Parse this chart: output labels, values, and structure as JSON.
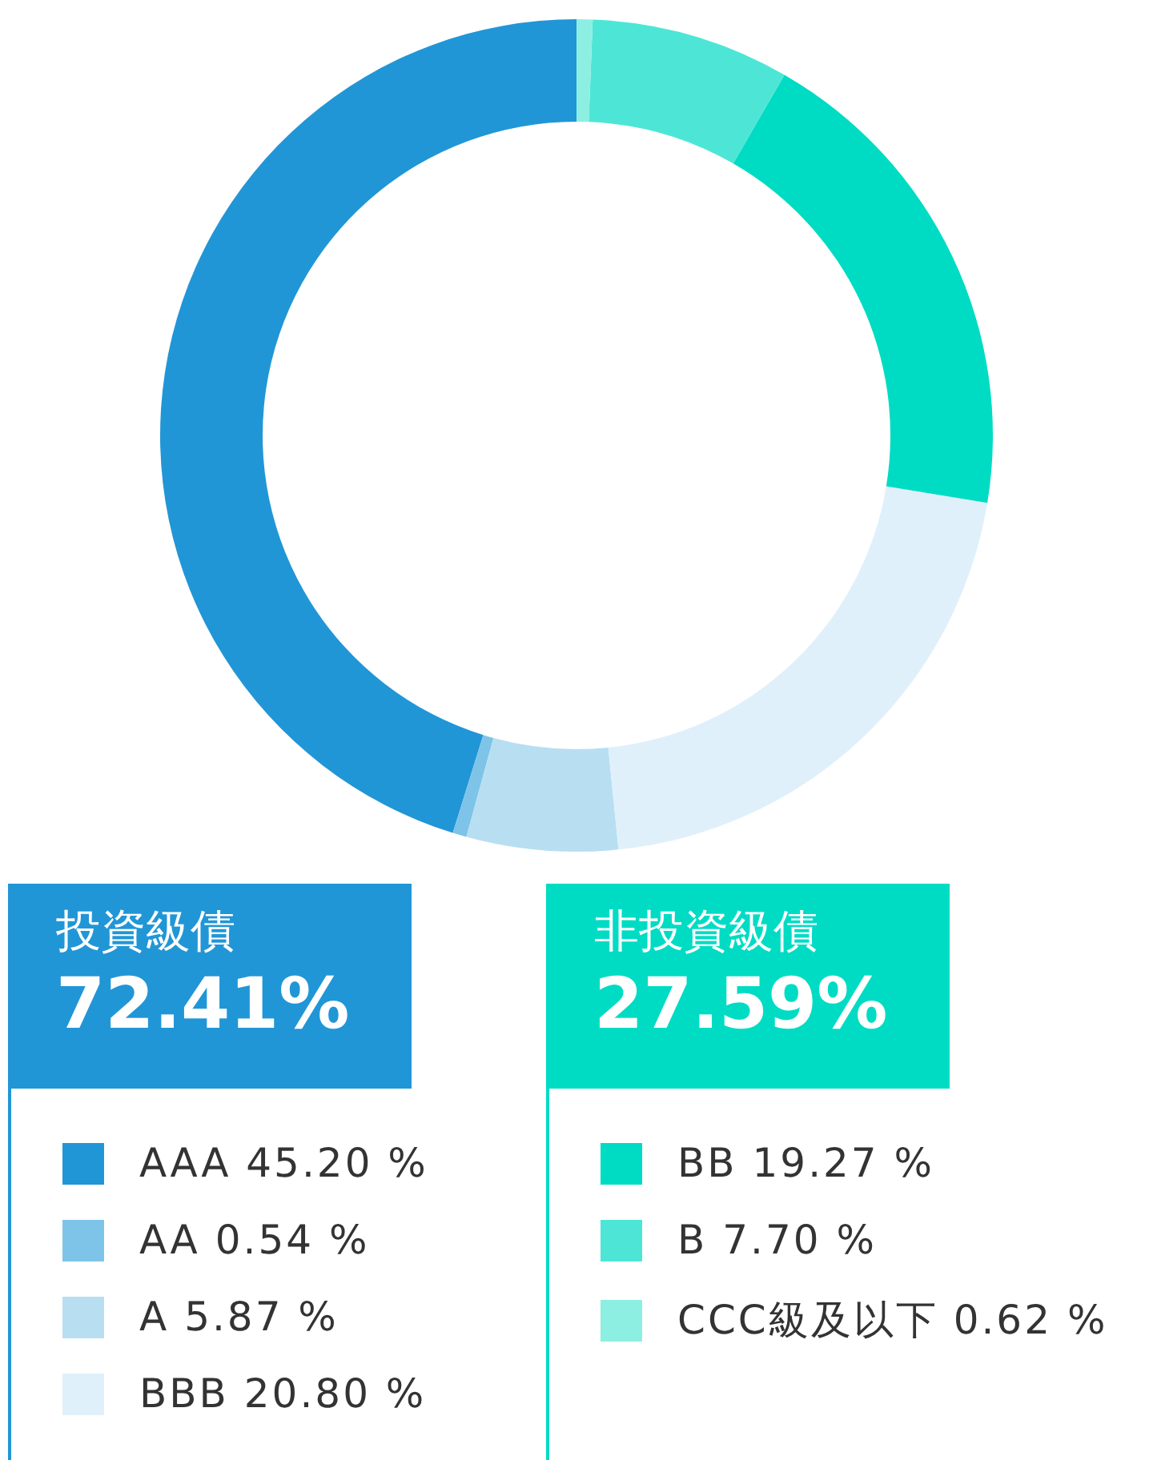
{
  "chart_data": {
    "type": "donut",
    "categories": [
      "AAA",
      "AA",
      "A",
      "BBB",
      "BB",
      "B",
      "CCC級及以下"
    ],
    "values": [
      45.2,
      0.54,
      5.87,
      20.8,
      19.27,
      7.7,
      0.62
    ],
    "value_labels": [
      "45.20 %",
      "0.54 %",
      "5.87 %",
      "20.80 %",
      "19.27 %",
      "7.70 %",
      "0.62 %"
    ],
    "colors": [
      "#2196d6",
      "#7ec4e8",
      "#b8def2",
      "#e0f0fa",
      "#00dcc4",
      "#4de6d6",
      "#8cefe2"
    ],
    "annotations": [
      "投資級債",
      "72.41%",
      "非投資級債",
      "27.59%"
    ],
    "legend": "bottom"
  }
}
